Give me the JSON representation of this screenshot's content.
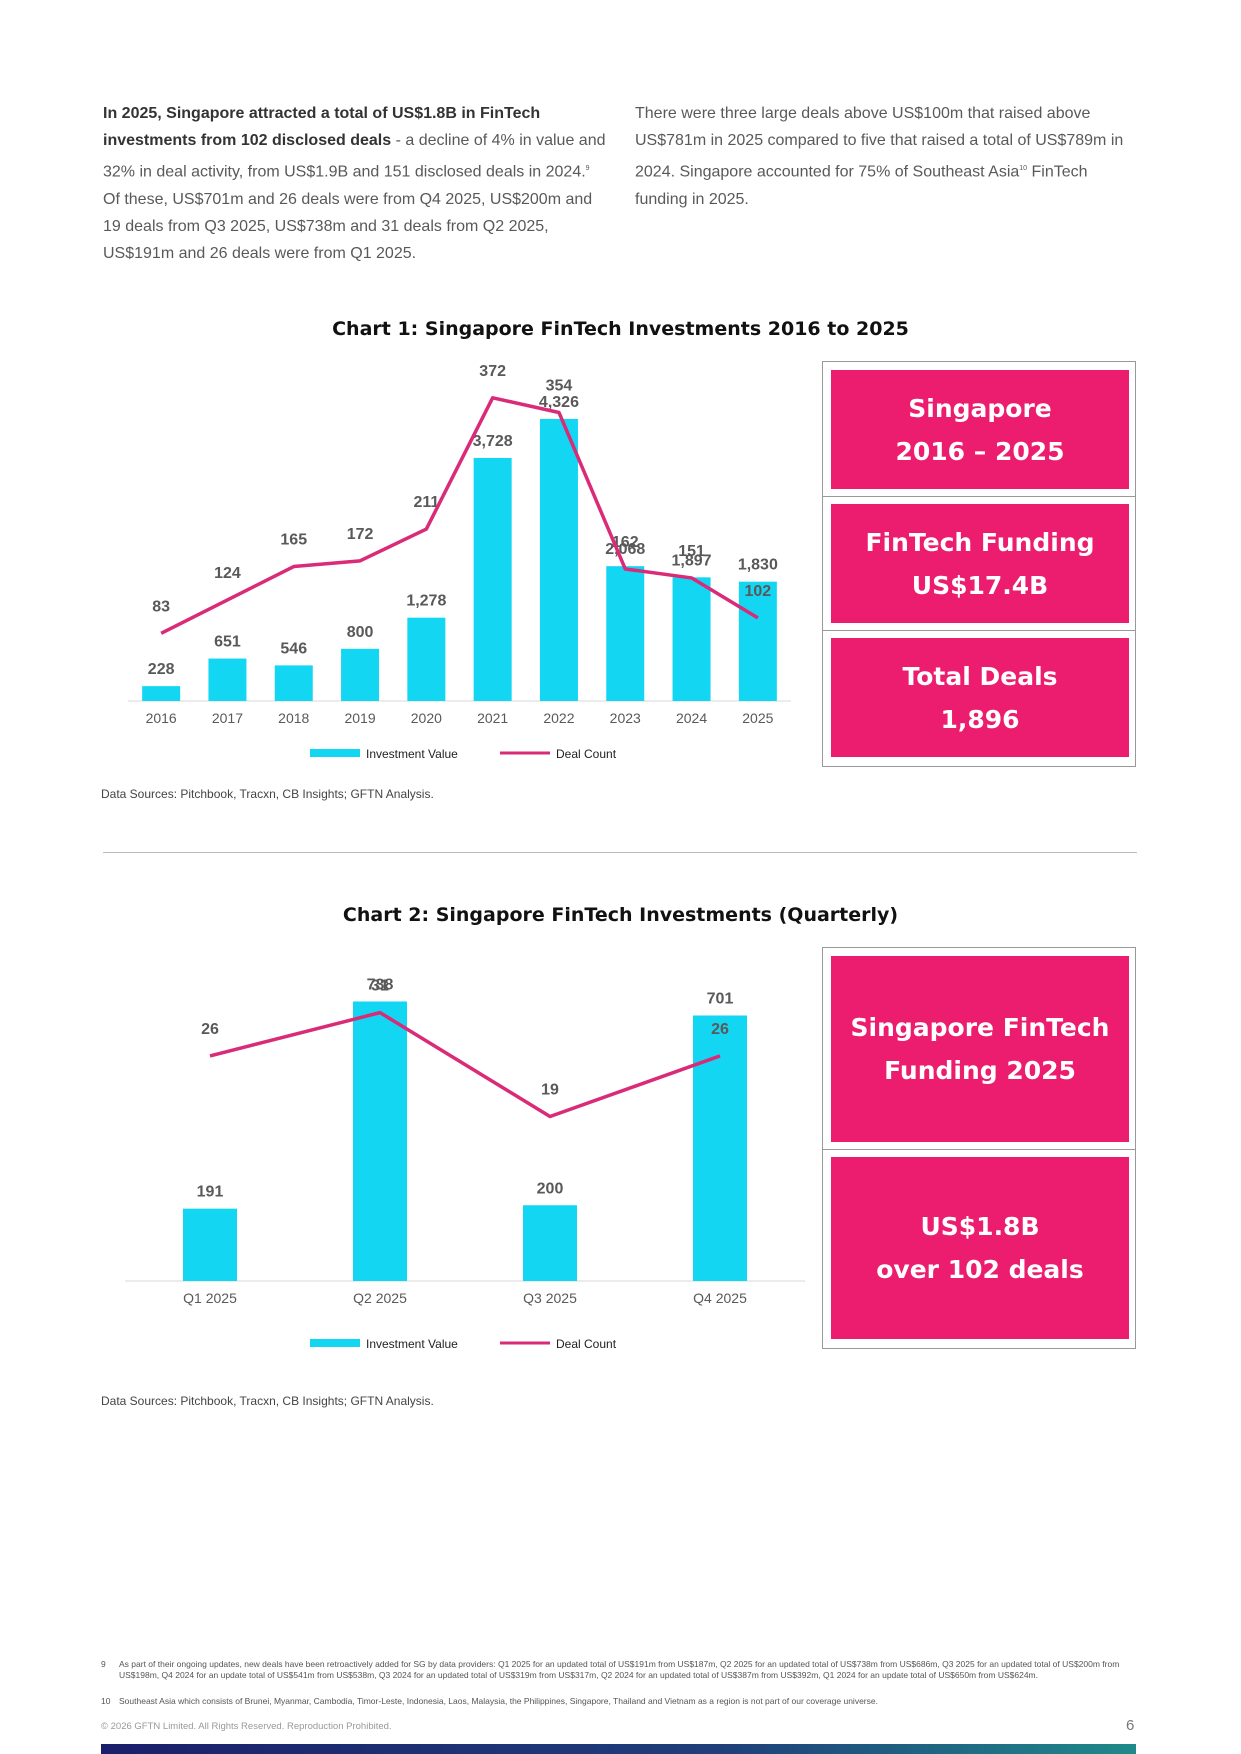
{
  "intro_left": [
    "In 2025, Singapore attracted a total of US$1.8B in FinTech investments from 102 disclosed deals",
    " - a decline of 4% in value and 32% in deal activity, from US$1.9B and 151 disclosed deals in 2024.",
    "9",
    " Of these, US$701m and 26 deals were from Q4 2025, US$200m and 19 deals from Q3 2025, US$738m  and 31 deals from Q2 2025, US$191m and 26 deals were from Q1 2025."
  ],
  "intro_right": [
    "There were three large deals above US$100m that raised above US$781m in 2025 compared to five that raised a total of US$789m in 2024. Singapore accounted for 75% of Southeast Asia",
    "10",
    " FinTech funding in 2025."
  ],
  "chart_data": [
    {
      "type": "bar-line",
      "title": "Chart 1: Singapore FinTech Investments 2016 to 2025",
      "categories": [
        "2016",
        "2017",
        "2018",
        "2019",
        "2020",
        "2021",
        "2022",
        "2023",
        "2024",
        "2025"
      ],
      "series": [
        {
          "name": "Investment Value",
          "color": "#13d6f3",
          "type": "bar",
          "values": [
            228,
            651,
            546,
            800,
            1278,
            3728,
            4326,
            2068,
            1897,
            1830
          ],
          "value_labels": [
            "228",
            "651",
            "546",
            "800",
            "1,278",
            "3,728",
            "4,326",
            "2,068",
            "1,897",
            "1,830"
          ]
        },
        {
          "name": "Deal Count",
          "color": "#d92b77",
          "type": "line",
          "axis": "y2",
          "values": [
            83,
            124,
            165,
            172,
            211,
            372,
            354,
            162,
            151,
            102
          ]
        }
      ],
      "ylim": [
        0,
        5000
      ],
      "y2lim": [
        0,
        400
      ],
      "source": "Data Sources: Pitchbook, Tracxn, CB Insights; GFTN Analysis."
    },
    {
      "type": "bar-line",
      "title": "Chart 2: Singapore FinTech Investments (Quarterly)",
      "categories": [
        "Q1 2025",
        "Q2 2025",
        "Q3 2025",
        "Q4 2025"
      ],
      "series": [
        {
          "name": "Investment Value",
          "color": "#13d6f3",
          "type": "bar",
          "values": [
            191,
            738,
            200,
            701
          ]
        },
        {
          "name": "Deal Count",
          "color": "#d92b77",
          "type": "line",
          "axis": "y2",
          "values": [
            26,
            31,
            19,
            26
          ]
        }
      ],
      "ylim": [
        0,
        800
      ],
      "y2lim": [
        0,
        35
      ],
      "source": "Data Sources: Pitchbook, Tracxn, CB Insights; GFTN Analysis."
    }
  ],
  "panels": [
    [
      [
        "Singapore",
        "2016 – 2025"
      ],
      [
        "FinTech Funding",
        "US$17.4B"
      ],
      [
        "Total Deals",
        "1,896"
      ]
    ],
    [
      [
        "Singapore FinTech",
        "Funding 2025"
      ],
      [
        "US$1.8B",
        "over 102 deals"
      ]
    ]
  ],
  "footnotes": [
    {
      "number": "9",
      "text": "As part of their ongoing updates, new deals have been retroactively added for SG by data providers: Q1 2025 for an updated total of US$191m from US$187m, Q2 2025 for an updated total of US$738m from US$686m, Q3 2025 for an updated total of US$200m from US$198m, Q4 2024 for an update total of US$541m from US$538m, Q3 2024 for an updated total of US$319m from US$317m, Q2 2024 for an updated total of US$387m from US$392m, Q1 2024 for an update total of US$650m from US$624m."
    },
    {
      "number": "10",
      "text": "Southeast Asia which consists of Brunei, Myanmar, Cambodia, Timor-Leste, Indonesia, Laos, Malaysia, the Philippines, Singapore, Thailand and Vietnam as a region is not part of our coverage universe."
    }
  ],
  "footer": {
    "copyright": "© 2026 GFTN Limited. All Rights Reserved. Reproduction Prohibited.",
    "page": "6"
  }
}
